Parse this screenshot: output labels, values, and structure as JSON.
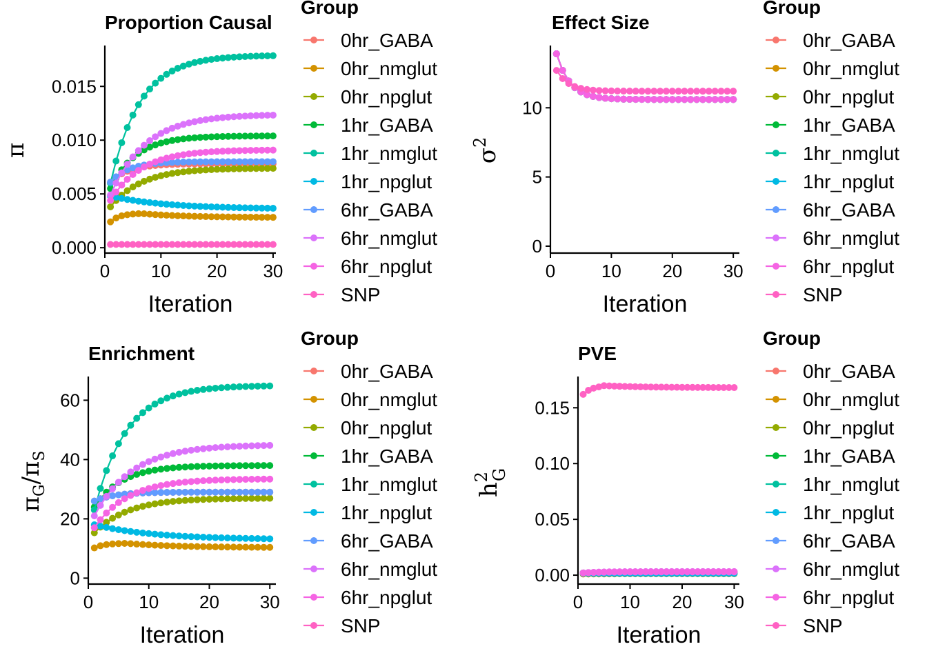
{
  "groups": [
    "0hr_GABA",
    "0hr_nmglut",
    "0hr_npglut",
    "1hr_GABA",
    "1hr_nmglut",
    "1hr_npglut",
    "6hr_GABA",
    "6hr_nmglut",
    "6hr_npglut",
    "SNP"
  ],
  "colors": [
    "#F8766D",
    "#D39200",
    "#93AA00",
    "#00BA38",
    "#00C19F",
    "#00B9E3",
    "#619CFF",
    "#DB72FB",
    "#F564E3",
    "#FF61C3"
  ],
  "chart_data": [
    {
      "type": "line",
      "title": "Proportion Causal",
      "xlabel": "Iteration",
      "ylabel": "π",
      "xlim": [
        0,
        30.5
      ],
      "ylim": [
        -0.0005,
        0.0188
      ],
      "xticks": [
        0,
        10,
        20,
        30
      ],
      "yticks": [
        0.0,
        0.005,
        0.01,
        0.015
      ],
      "ytick_labels": [
        "0.000",
        "0.005",
        "0.010",
        "0.015"
      ],
      "legend_title": "Group",
      "series": [
        {
          "name": "0hr_GABA",
          "start": 0.0061,
          "end": 0.0078,
          "rate": 0.3
        },
        {
          "name": "0hr_nmglut",
          "start": 0.0024,
          "end": 0.0028,
          "rate": 0.25,
          "peak": 0.0032,
          "peak_at": 6
        },
        {
          "name": "0hr_npglut",
          "start": 0.0038,
          "end": 0.0074,
          "rate": 0.18
        },
        {
          "name": "1hr_GABA",
          "start": 0.0055,
          "end": 0.0104,
          "rate": 0.22
        },
        {
          "name": "1hr_nmglut",
          "start": 0.006,
          "end": 0.0179,
          "rate": 0.19
        },
        {
          "name": "1hr_npglut",
          "start": 0.0048,
          "end": 0.0036,
          "rate": 0.1
        },
        {
          "name": "6hr_GABA",
          "start": 0.0061,
          "end": 0.008,
          "rate": 0.3
        },
        {
          "name": "6hr_nmglut",
          "start": 0.0049,
          "end": 0.0124,
          "rate": 0.16
        },
        {
          "name": "6hr_npglut",
          "start": 0.0044,
          "end": 0.0091,
          "rate": 0.18
        },
        {
          "name": "SNP",
          "start": 0.0003,
          "end": 0.0003,
          "rate": 0.5
        }
      ]
    },
    {
      "type": "line",
      "title": "Effect Size",
      "xlabel": "Iteration",
      "ylabel": "σ²",
      "xlim": [
        0,
        31
      ],
      "ylim": [
        -0.5,
        14.5
      ],
      "xticks": [
        0,
        10,
        20,
        30
      ],
      "yticks": [
        0,
        5,
        10
      ],
      "ytick_labels": [
        "0",
        "5",
        "10"
      ],
      "legend_title": "Group",
      "series": [
        {
          "name": "0hr_GABA",
          "start": 13.9,
          "end": 10.6,
          "rate": 0.45
        },
        {
          "name": "0hr_nmglut",
          "start": 13.9,
          "end": 10.6,
          "rate": 0.45
        },
        {
          "name": "0hr_npglut",
          "start": 13.9,
          "end": 10.6,
          "rate": 0.45
        },
        {
          "name": "1hr_GABA",
          "start": 13.9,
          "end": 10.6,
          "rate": 0.45
        },
        {
          "name": "1hr_nmglut",
          "start": 13.9,
          "end": 10.6,
          "rate": 0.45
        },
        {
          "name": "1hr_npglut",
          "start": 13.9,
          "end": 10.6,
          "rate": 0.45
        },
        {
          "name": "6hr_GABA",
          "start": 13.9,
          "end": 10.6,
          "rate": 0.45
        },
        {
          "name": "6hr_nmglut",
          "start": 13.9,
          "end": 10.6,
          "rate": 0.45
        },
        {
          "name": "6hr_npglut",
          "start": 13.9,
          "end": 10.6,
          "rate": 0.45
        },
        {
          "name": "SNP",
          "start": 12.7,
          "end": 11.2,
          "rate": 0.5
        }
      ]
    },
    {
      "type": "line",
      "title": "Enrichment",
      "xlabel": "Iteration",
      "ylabel": "πG/πS",
      "xlim": [
        0,
        31
      ],
      "ylim": [
        -2,
        68
      ],
      "xticks": [
        0,
        10,
        20,
        30
      ],
      "yticks": [
        0,
        20,
        40,
        60
      ],
      "ytick_labels": [
        "0",
        "20",
        "40",
        "60"
      ],
      "legend_title": "Group",
      "series": [
        {
          "name": "0hr_GABA",
          "start": 26,
          "end": 29,
          "rate": 0.3
        },
        {
          "name": "0hr_nmglut",
          "start": 10.2,
          "end": 10.3,
          "rate": 0.25,
          "peak": 11.8,
          "peak_at": 6
        },
        {
          "name": "0hr_npglut",
          "start": 15.3,
          "end": 27,
          "rate": 0.18
        },
        {
          "name": "1hr_GABA",
          "start": 24,
          "end": 38,
          "rate": 0.22
        },
        {
          "name": "1hr_nmglut",
          "start": 23,
          "end": 65,
          "rate": 0.19
        },
        {
          "name": "1hr_npglut",
          "start": 18,
          "end": 13,
          "rate": 0.1
        },
        {
          "name": "6hr_GABA",
          "start": 26,
          "end": 29,
          "rate": 0.3
        },
        {
          "name": "6hr_nmglut",
          "start": 21,
          "end": 45,
          "rate": 0.16
        },
        {
          "name": "6hr_npglut",
          "start": 17,
          "end": 33.5,
          "rate": 0.18
        },
        {
          "name": "SNP",
          "start": null,
          "end": null,
          "rate": 0
        }
      ]
    },
    {
      "type": "line",
      "title": "PVE",
      "xlabel": "Iteration",
      "ylabel": "h²G",
      "xlim": [
        0,
        31
      ],
      "ylim": [
        -0.008,
        0.178
      ],
      "xticks": [
        0,
        10,
        20,
        30
      ],
      "yticks": [
        0.0,
        0.05,
        0.1,
        0.15
      ],
      "ytick_labels": [
        "0.00",
        "0.05",
        "0.10",
        "0.15"
      ],
      "legend_title": "Group",
      "series": [
        {
          "name": "0hr_GABA",
          "start": 0.002,
          "end": 0.0025,
          "rate": 0.3
        },
        {
          "name": "0hr_nmglut",
          "start": 0.001,
          "end": 0.0012,
          "rate": 0.3
        },
        {
          "name": "0hr_npglut",
          "start": 0.0015,
          "end": 0.002,
          "rate": 0.3
        },
        {
          "name": "1hr_GABA",
          "start": 0.002,
          "end": 0.0028,
          "rate": 0.3
        },
        {
          "name": "1hr_nmglut",
          "start": 0.002,
          "end": 0.003,
          "rate": 0.3
        },
        {
          "name": "1hr_npglut",
          "start": 0.0015,
          "end": 0.0015,
          "rate": 0.3
        },
        {
          "name": "6hr_GABA",
          "start": 0.002,
          "end": 0.0028,
          "rate": 0.3
        },
        {
          "name": "6hr_nmglut",
          "start": 0.002,
          "end": 0.0032,
          "rate": 0.3
        },
        {
          "name": "6hr_npglut",
          "start": 0.002,
          "end": 0.003,
          "rate": 0.3
        },
        {
          "name": "SNP",
          "start": 0.162,
          "end": 0.168,
          "rate": 0.6,
          "peak": 0.17,
          "peak_at": 4
        }
      ]
    }
  ]
}
